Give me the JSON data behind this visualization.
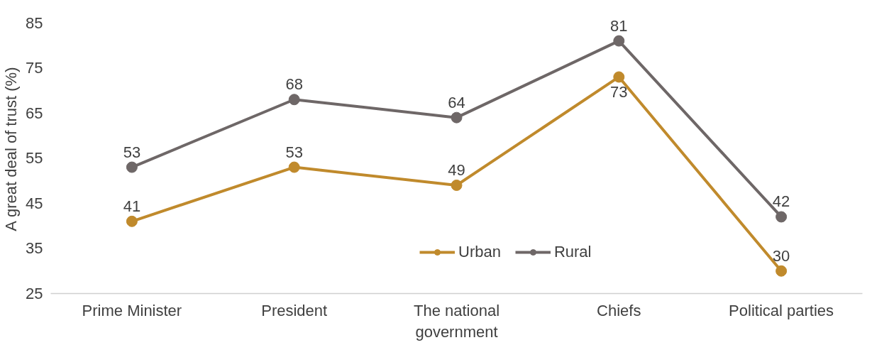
{
  "chart_data": {
    "type": "line",
    "ylabel": "A great deal of trust (%)",
    "categories": [
      "Prime Minister",
      "President",
      "The national government",
      "Chiefs",
      "Political parties"
    ],
    "series": [
      {
        "name": "Urban",
        "color": "#c08a2c",
        "values": [
          41,
          53,
          49,
          73,
          30
        ]
      },
      {
        "name": "Rural",
        "color": "#6e6767",
        "values": [
          53,
          68,
          64,
          81,
          42
        ]
      }
    ],
    "ylim": [
      25,
      85
    ],
    "yticks": [
      25,
      35,
      45,
      55,
      65,
      75,
      85
    ],
    "grid": false,
    "legend": "bottom",
    "marker": "circle",
    "line_style": "solid",
    "data_labels": true
  }
}
